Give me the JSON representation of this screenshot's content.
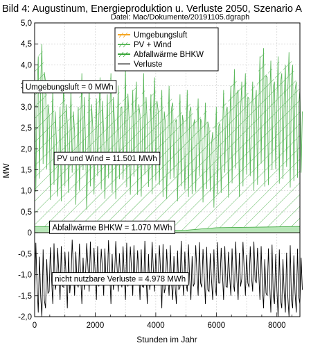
{
  "chart_data": {
    "type": "area",
    "title": "Bild 4: Augustinum, Energieproduktion u. Verluste 2050, Szenario A",
    "subtitle": "Datei: Mac/Dokumente/20191105.dgraph",
    "xlabel": "Stunden im Jahr",
    "ylabel": "MW",
    "xlim": [
      0,
      8760
    ],
    "ylim": [
      -2.0,
      5.0
    ],
    "x_ticks": [
      "0",
      "2000",
      "4000",
      "6000",
      "8000"
    ],
    "y_ticks": [
      "-2,0",
      "-1,5",
      "-1,0",
      "-0,5",
      "0",
      "0,5",
      "1,0",
      "1,5",
      "2,0",
      "2,5",
      "3,0",
      "3,5",
      "4,0",
      "4,5",
      "5,0"
    ],
    "grid": true,
    "legend_position": "top-right",
    "series": [
      {
        "name": "Umgebungsluft",
        "color": "#f5a623",
        "x": [
          0,
          8760
        ],
        "values": [
          0,
          0
        ]
      },
      {
        "name": "PV + Wind",
        "color": "#5cb85c",
        "x": [
          0,
          120,
          240,
          360,
          480,
          600,
          720,
          840,
          960,
          1080,
          1200,
          1320,
          1440,
          1560,
          1680,
          1800,
          1920,
          2040,
          2160,
          2280,
          2400,
          2520,
          2640,
          2760,
          2880,
          3000,
          3120,
          3240,
          3360,
          3480,
          3600,
          3720,
          3840,
          3960,
          4080,
          4200,
          4320,
          4440,
          4560,
          4680,
          4800,
          4920,
          5040,
          5160,
          5280,
          5400,
          5520,
          5640,
          5760,
          5880,
          6000,
          6120,
          6240,
          6360,
          6480,
          6600,
          6720,
          6840,
          6960,
          7080,
          7200,
          7320,
          7440,
          7560,
          7680,
          7800,
          7920,
          8040,
          8160,
          8280,
          8400,
          8520,
          8640,
          8760
        ],
        "values": [
          3.9,
          4.2,
          4.5,
          3.6,
          2.8,
          3.4,
          2.2,
          3.0,
          3.6,
          2.6,
          3.4,
          2.4,
          3.0,
          3.8,
          2.2,
          3.6,
          2.5,
          3.2,
          3.7,
          2.4,
          3.3,
          3.8,
          2.6,
          3.5,
          3.0,
          3.9,
          2.7,
          3.4,
          3.6,
          2.8,
          3.8,
          2.6,
          3.3,
          3.7,
          2.9,
          3.4,
          2.6,
          3.5,
          3.1,
          2.7,
          3.3,
          2.6,
          3.4,
          3.0,
          2.7,
          3.2,
          2.6,
          3.1,
          2.5,
          2.4,
          3.0,
          2.6,
          3.4,
          3.0,
          3.5,
          3.9,
          3.4,
          3.6,
          3.8,
          3.2,
          3.6,
          3.4,
          4.2,
          4.4,
          3.7,
          4.1,
          3.6,
          4.2,
          3.8,
          4.0,
          4.3,
          4.0,
          3.6,
          3.4
        ]
      },
      {
        "name": "Abfallwärme BHKW",
        "color": "#3aa63a",
        "x": [
          0,
          1000,
          2000,
          3000,
          4000,
          5000,
          6000,
          7000,
          8000,
          8760
        ],
        "values": [
          0.15,
          0.13,
          0.1,
          0.08,
          0.05,
          0.06,
          0.12,
          0.13,
          0.14,
          0.15
        ]
      },
      {
        "name": "Verluste",
        "color": "#000000",
        "x": [
          0,
          120,
          240,
          360,
          480,
          600,
          720,
          840,
          960,
          1080,
          1200,
          1320,
          1440,
          1560,
          1680,
          1800,
          1920,
          2040,
          2160,
          2280,
          2400,
          2520,
          2640,
          2760,
          2880,
          3000,
          3120,
          3240,
          3360,
          3480,
          3600,
          3720,
          3840,
          3960,
          4080,
          4200,
          4320,
          4440,
          4560,
          4680,
          4800,
          4920,
          5040,
          5160,
          5280,
          5400,
          5520,
          5640,
          5760,
          5880,
          6000,
          6120,
          6240,
          6360,
          6480,
          6600,
          6720,
          6840,
          6960,
          7080,
          7200,
          7320,
          7440,
          7560,
          7680,
          7800,
          7920,
          8040,
          8160,
          8280,
          8400,
          8520,
          8640,
          8760
        ],
        "values": [
          -1.6,
          -1.9,
          -2.0,
          -1.8,
          -1.4,
          -1.7,
          -1.2,
          -1.6,
          -1.3,
          -1.8,
          -1.1,
          -1.5,
          -1.3,
          -1.7,
          -1.0,
          -1.4,
          -1.2,
          -1.6,
          -1.1,
          -1.5,
          -1.2,
          -1.7,
          -1.0,
          -1.4,
          -1.3,
          -1.6,
          -1.1,
          -1.5,
          -1.2,
          -1.6,
          -1.3,
          -1.7,
          -1.1,
          -1.4,
          -1.2,
          -1.8,
          -1.3,
          -1.5,
          -1.6,
          -1.7,
          -1.3,
          -1.5,
          -1.4,
          -1.6,
          -1.2,
          -1.5,
          -1.3,
          -1.7,
          -1.4,
          -1.6,
          -1.5,
          -1.2,
          -1.6,
          -1.3,
          -1.5,
          -1.4,
          -1.6,
          -1.1,
          -1.5,
          -1.3,
          -1.4,
          -1.2,
          -1.6,
          -1.8,
          -1.5,
          -1.9,
          -1.7,
          -2.0,
          -1.8,
          -1.9,
          -2.0,
          -1.8,
          -1.9,
          -1.7
        ]
      }
    ],
    "annotations": [
      {
        "text": "Umgebungsluft = 0 MWh",
        "x": 1150,
        "y": 3.48
      },
      {
        "text": "PV und Wind = 11.501 MWh",
        "x": 2390,
        "y": 1.77
      },
      {
        "text": "Abfallwärme BHKW = 1.070 MWh",
        "x": 2560,
        "y": 0.13
      },
      {
        "text": "nicht nutzbare Verluste = 4.978 MWh",
        "x": 2830,
        "y": -1.1
      }
    ]
  }
}
